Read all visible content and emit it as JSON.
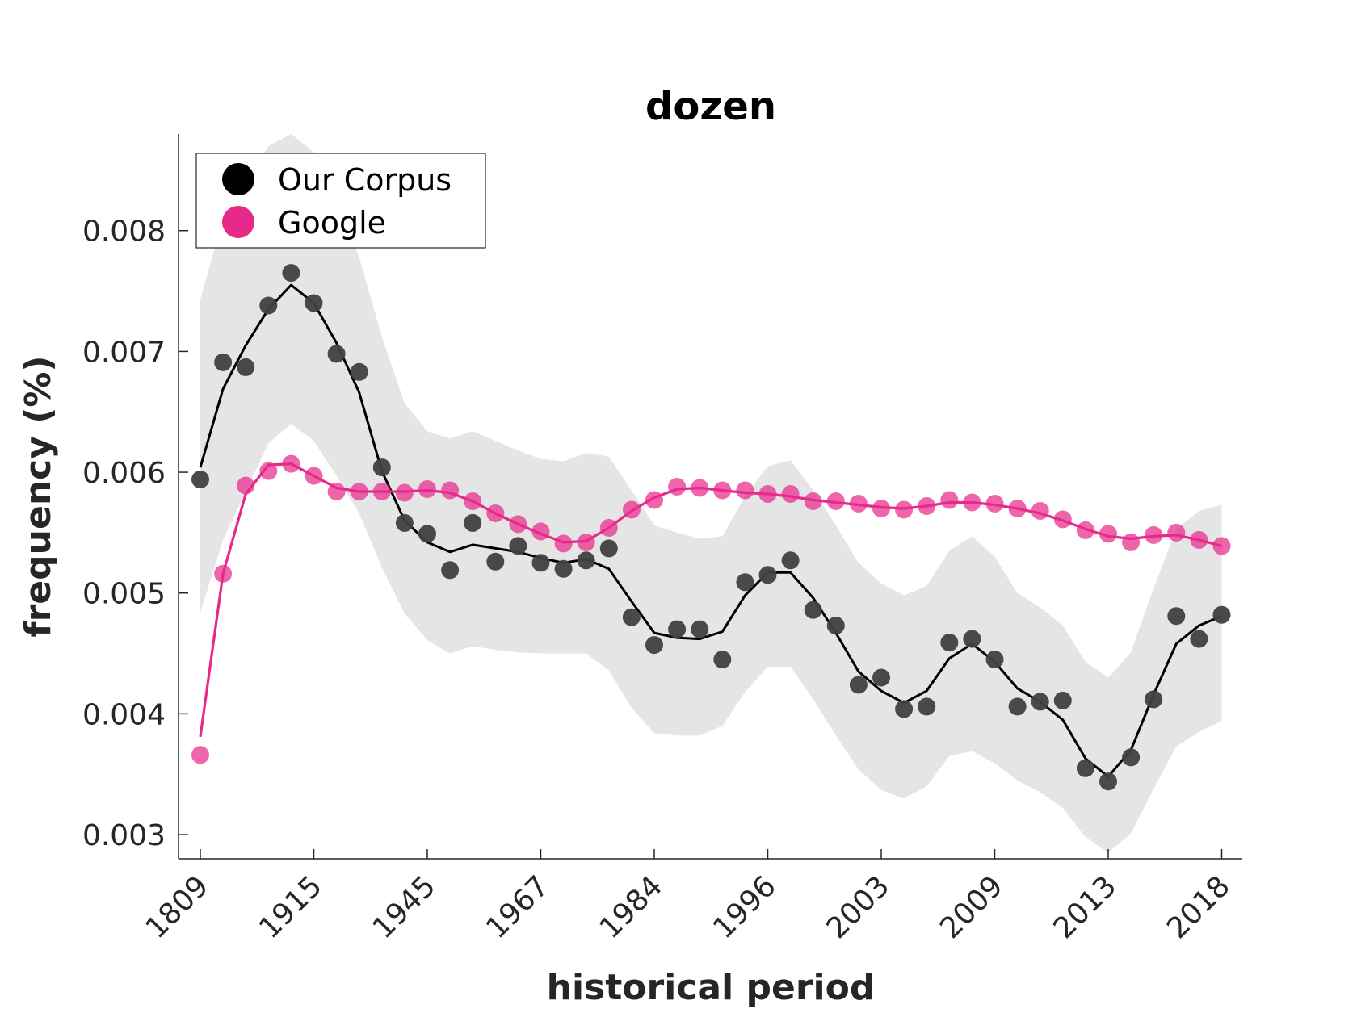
{
  "chart_data": {
    "type": "scatter",
    "title": "dozen",
    "xlabel": "historical period",
    "ylabel": "frequency (%)",
    "ylim": [
      0.0028,
      0.0088
    ],
    "yticks": [
      "0.003",
      "0.004",
      "0.005",
      "0.006",
      "0.007",
      "0.008"
    ],
    "ytick_values": [
      0.003,
      0.004,
      0.005,
      0.006,
      0.007,
      0.008
    ],
    "xtick_labels": [
      "1809",
      "1915",
      "1945",
      "1967",
      "1984",
      "1996",
      "2003",
      "2009",
      "2013",
      "2018"
    ],
    "xtick_positions": [
      0,
      5,
      10,
      15,
      20,
      25,
      30,
      35,
      40,
      45
    ],
    "legend_position": "top-left",
    "grid": false,
    "series": [
      {
        "name": "Our Corpus",
        "color": "#404040",
        "line_color": "#000000",
        "points": [
          0.00594,
          0.00691,
          0.00687,
          0.00738,
          0.00765,
          0.0074,
          0.00698,
          0.00683,
          0.00604,
          0.00558,
          0.00549,
          0.00519,
          0.00558,
          0.00526,
          0.00539,
          0.00525,
          0.0052,
          0.00527,
          0.00537,
          0.0048,
          0.00457,
          0.0047,
          0.0047,
          0.00445,
          0.00509,
          0.00515,
          0.00527,
          0.00486,
          0.00473,
          0.00424,
          0.0043,
          0.00404,
          0.00406,
          0.00459,
          0.00462,
          0.00445,
          0.00406,
          0.0041,
          0.00411,
          0.00355,
          0.00344,
          0.00364,
          0.00412,
          0.00481,
          0.00462,
          0.00482
        ],
        "smooth": [
          0.00604,
          0.00669,
          0.00705,
          0.00735,
          0.00755,
          0.0074,
          0.00707,
          0.00666,
          0.00601,
          0.0056,
          0.00542,
          0.00534,
          0.0054,
          0.00537,
          0.00534,
          0.00529,
          0.00525,
          0.00528,
          0.0052,
          0.00493,
          0.00467,
          0.00463,
          0.00462,
          0.00468,
          0.00498,
          0.00517,
          0.00517,
          0.00496,
          0.00467,
          0.00435,
          0.00419,
          0.00409,
          0.00419,
          0.00446,
          0.00458,
          0.00443,
          0.00421,
          0.0041,
          0.00395,
          0.00363,
          0.00348,
          0.0037,
          0.00416,
          0.00458,
          0.00473,
          0.00481
        ],
        "band_upper": [
          0.00743,
          0.0081,
          0.0084,
          0.0087,
          0.0088,
          0.00865,
          0.0083,
          0.00778,
          0.00712,
          0.00657,
          0.00634,
          0.00628,
          0.00634,
          0.00626,
          0.00618,
          0.00611,
          0.00609,
          0.00616,
          0.00613,
          0.00585,
          0.00556,
          0.0055,
          0.00545,
          0.00547,
          0.0058,
          0.00605,
          0.0061,
          0.00585,
          0.00556,
          0.00525,
          0.00508,
          0.00498,
          0.00506,
          0.00535,
          0.00547,
          0.0053,
          0.005,
          0.00488,
          0.00473,
          0.00443,
          0.0043,
          0.00451,
          0.00504,
          0.00553,
          0.00568,
          0.00573
        ],
        "band_lower": [
          0.00484,
          0.00544,
          0.00584,
          0.00624,
          0.0064,
          0.00626,
          0.00597,
          0.00566,
          0.00521,
          0.00483,
          0.00461,
          0.0045,
          0.00456,
          0.00453,
          0.00451,
          0.0045,
          0.0045,
          0.0045,
          0.00436,
          0.00405,
          0.00384,
          0.00382,
          0.00382,
          0.0039,
          0.00418,
          0.00439,
          0.00439,
          0.00412,
          0.00382,
          0.00354,
          0.00337,
          0.0033,
          0.0034,
          0.00365,
          0.00369,
          0.00359,
          0.00345,
          0.00335,
          0.00322,
          0.00298,
          0.00285,
          0.00301,
          0.00338,
          0.00373,
          0.00385,
          0.00394
        ]
      },
      {
        "name": "Google",
        "color": "#e7298a",
        "line_color": "#e7298a",
        "points": [
          0.00366,
          0.00516,
          0.00589,
          0.00601,
          0.00607,
          0.00597,
          0.00584,
          0.00584,
          0.00584,
          0.00583,
          0.00586,
          0.00585,
          0.00576,
          0.00566,
          0.00557,
          0.00551,
          0.00541,
          0.00542,
          0.00554,
          0.00569,
          0.00577,
          0.00588,
          0.00587,
          0.00585,
          0.00585,
          0.00582,
          0.00582,
          0.00576,
          0.00576,
          0.00574,
          0.0057,
          0.00569,
          0.00572,
          0.00577,
          0.00575,
          0.00574,
          0.0057,
          0.00568,
          0.00561,
          0.00552,
          0.00549,
          0.00542,
          0.00548,
          0.0055,
          0.00544,
          0.00539
        ],
        "smooth": [
          0.00381,
          0.00516,
          0.00582,
          0.00606,
          0.00607,
          0.00597,
          0.00587,
          0.00584,
          0.00584,
          0.00584,
          0.00585,
          0.00583,
          0.00576,
          0.00566,
          0.00557,
          0.00549,
          0.00542,
          0.00543,
          0.00554,
          0.00568,
          0.00579,
          0.00586,
          0.00587,
          0.00585,
          0.00583,
          0.00582,
          0.0058,
          0.00577,
          0.00575,
          0.00573,
          0.00571,
          0.0057,
          0.00572,
          0.00575,
          0.00575,
          0.00573,
          0.0057,
          0.00566,
          0.0056,
          0.00553,
          0.00547,
          0.00545,
          0.00547,
          0.00548,
          0.00544,
          0.00539
        ]
      }
    ]
  }
}
